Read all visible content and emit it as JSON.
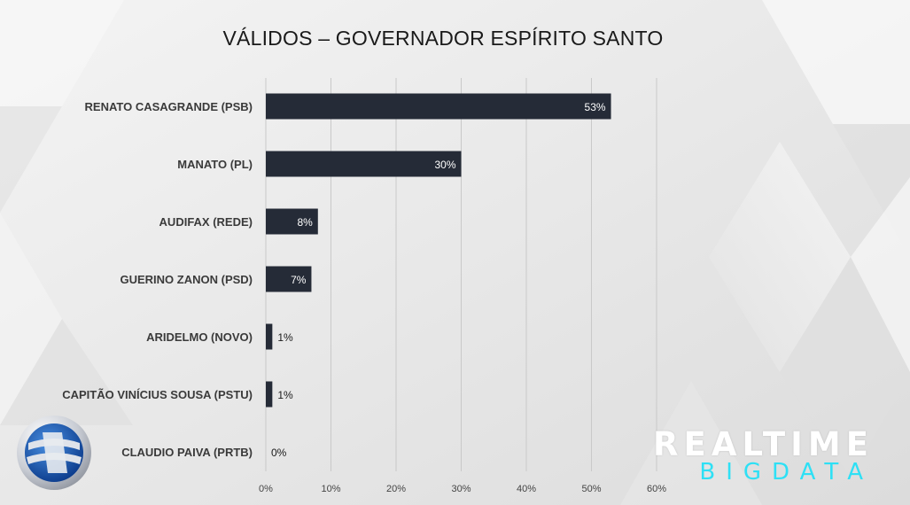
{
  "title": "VÁLIDOS – GOVERNADOR ESPÍRITO SANTO",
  "colors": {
    "bar": "#252b37",
    "bar_label_inside": "#ffffff",
    "bar_label_outside": "#1a1a1a",
    "accent_cyan": "#2ee0f5",
    "grid": "#c9c9c9"
  },
  "chart_data": {
    "type": "bar",
    "orientation": "horizontal",
    "title": "VÁLIDOS – GOVERNADOR ESPÍRITO SANTO",
    "categories": [
      "RENATO CASAGRANDE (PSB)",
      "MANATO (PL)",
      "AUDIFAX (REDE)",
      "GUERINO ZANON (PSD)",
      "ARIDELMO (NOVO)",
      "CAPITÃO VINÍCIUS SOUSA (PSTU)",
      "CLAUDIO PAIVA (PRTB)"
    ],
    "values": [
      53,
      30,
      8,
      7,
      1,
      1,
      0
    ],
    "value_labels": [
      "53%",
      "30%",
      "8%",
      "7%",
      "1%",
      "1%",
      "0%"
    ],
    "xlim": [
      0,
      60
    ],
    "xticks": [
      0,
      10,
      20,
      30,
      40,
      50,
      60
    ],
    "xtick_labels": [
      "0%",
      "10%",
      "20%",
      "30%",
      "40%",
      "50%",
      "60%"
    ],
    "grid": "vertical",
    "legend": "none"
  },
  "logos": {
    "left": "record-tv-logo",
    "right_line1": "REALTIME",
    "right_line2": "BIGDATA"
  }
}
